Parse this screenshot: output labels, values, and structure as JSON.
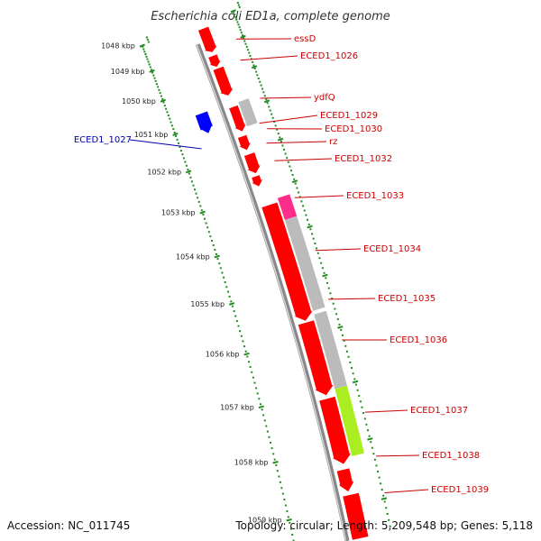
{
  "title": "Escherichia coli ED1a, complete genome",
  "footer": {
    "accession": "Accession: NC_011745",
    "summary": "Topology: circular; Length: 5,209,548 bp; Genes: 5,118"
  },
  "colors": {
    "forward_gene": "#ff0000",
    "reverse_gene": "#0000ff",
    "label_forward": "#cc0000",
    "label_reverse": "#0000aa",
    "pseudo_gene": "#bbbbbb",
    "pink_gene": "#ff2d8a",
    "green_gene": "#aaee22",
    "backbone": "#888888",
    "ticks": "#228b22"
  },
  "ticks": [
    {
      "label": "1048 kbp"
    },
    {
      "label": "1049 kbp"
    },
    {
      "label": "1050 kbp"
    },
    {
      "label": "1051 kbp"
    },
    {
      "label": "1052 kbp"
    },
    {
      "label": "1053 kbp"
    },
    {
      "label": "1054 kbp"
    },
    {
      "label": "1055 kbp"
    },
    {
      "label": "1056 kbp"
    },
    {
      "label": "1057 kbp"
    },
    {
      "label": "1058 kbp"
    },
    {
      "label": "1059 kbp"
    }
  ],
  "gene_labels": [
    {
      "name": "essD",
      "strand": "forward"
    },
    {
      "name": "ECED1_1026",
      "strand": "forward"
    },
    {
      "name": "ydfQ",
      "strand": "forward"
    },
    {
      "name": "ECED1_1029",
      "strand": "forward"
    },
    {
      "name": "ECED1_1030",
      "strand": "forward"
    },
    {
      "name": "rz",
      "strand": "forward"
    },
    {
      "name": "ECED1_1032",
      "strand": "forward"
    },
    {
      "name": "ECED1_1033",
      "strand": "forward"
    },
    {
      "name": "ECED1_1034",
      "strand": "forward"
    },
    {
      "name": "ECED1_1035",
      "strand": "forward"
    },
    {
      "name": "ECED1_1036",
      "strand": "forward"
    },
    {
      "name": "ECED1_1037",
      "strand": "forward"
    },
    {
      "name": "ECED1_1038",
      "strand": "forward"
    },
    {
      "name": "ECED1_1039",
      "strand": "forward"
    },
    {
      "name": "ECED1_1027",
      "strand": "reverse"
    }
  ]
}
